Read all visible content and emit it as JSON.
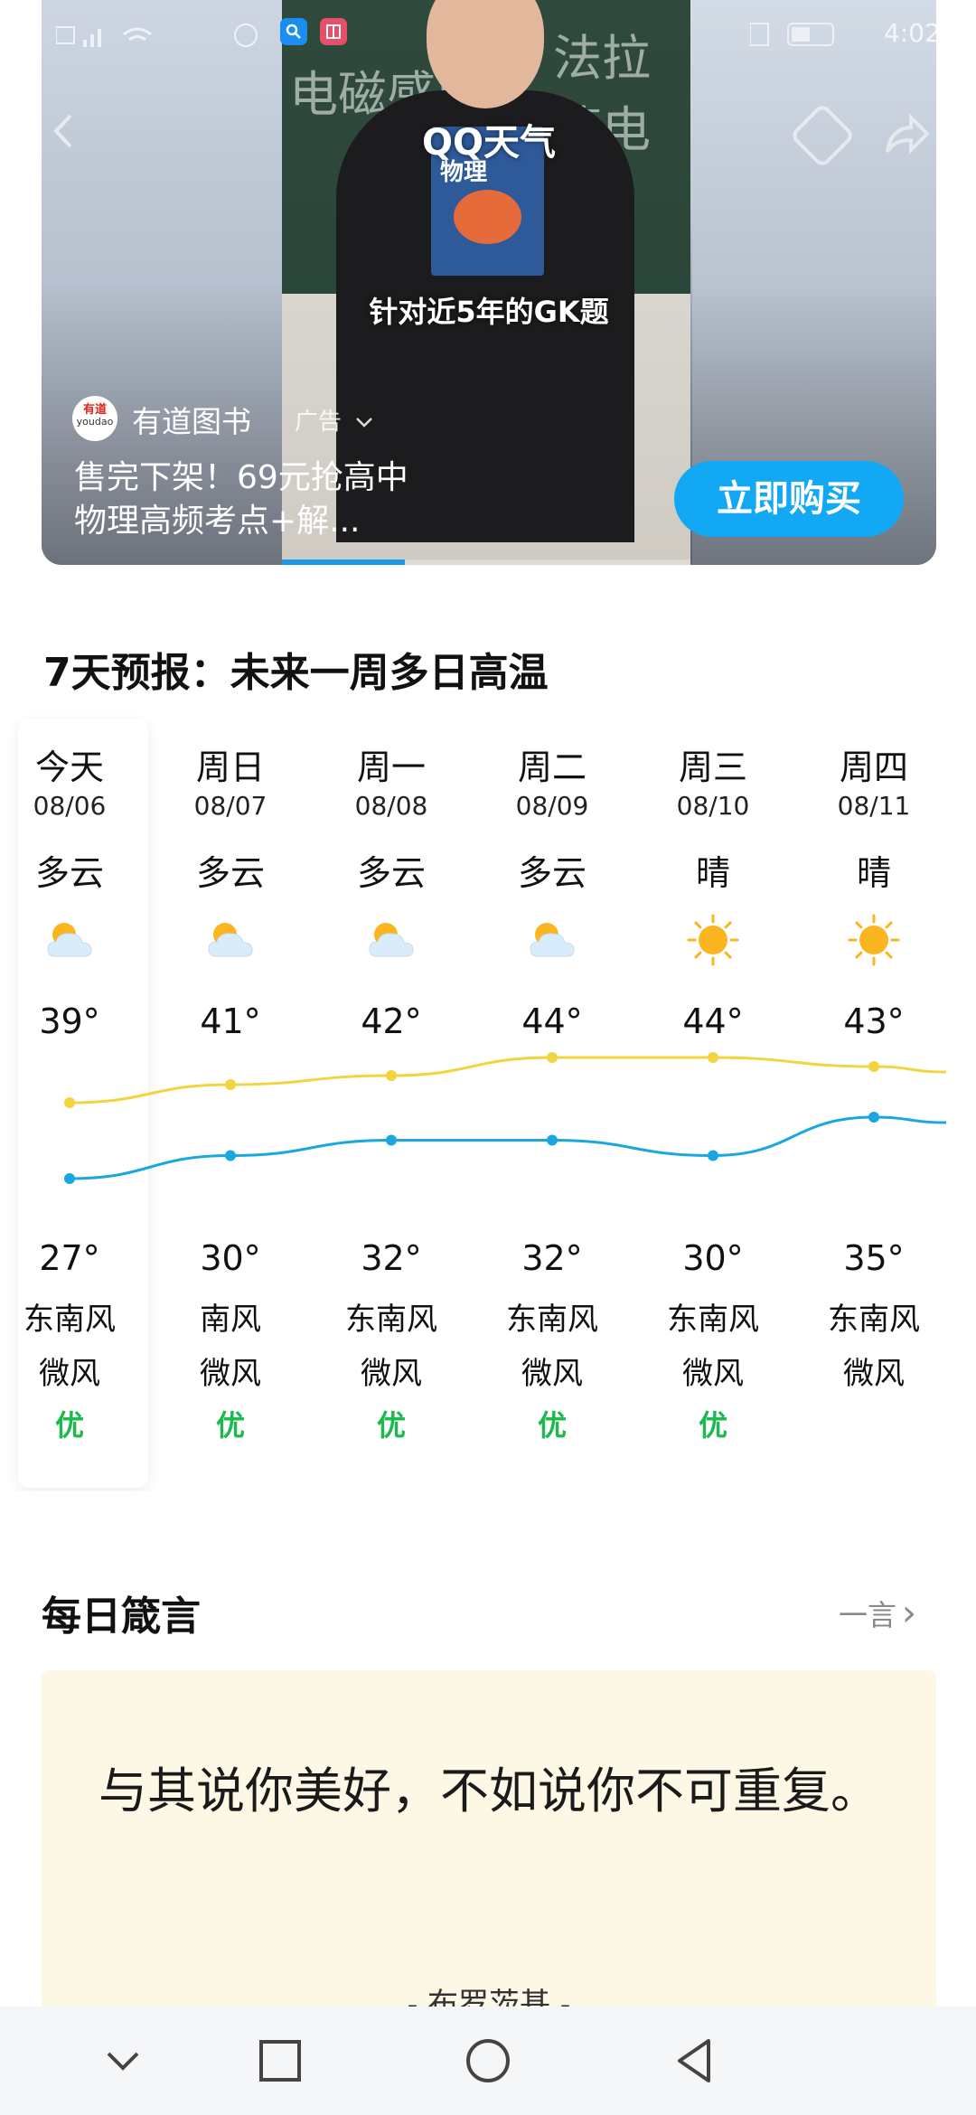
{
  "ad": {
    "overlay_title": "QQ天气",
    "book_title": "物理",
    "caption": "针对近5年的GK题",
    "brand": "有道图书",
    "logo_text_cn": "有道",
    "logo_text_en": "youdao",
    "tag": "广告",
    "description": "售完下架！69元抢高中物理高频考点+解...",
    "cta_label": "立即购买",
    "video_progress": 0.3,
    "colors": {
      "cta": "#12a8f3"
    }
  },
  "status_bar": {
    "time": "4:02"
  },
  "forecast": {
    "title": "7天预报：未来一周多日高温",
    "days": [
      {
        "name": "今天",
        "date": "08/06",
        "condition": "多云",
        "icon": "partly-cloudy-icon",
        "high": "39°",
        "low": "27°",
        "wind": "东南风",
        "wind_level": "微风",
        "aqi": "优"
      },
      {
        "name": "周日",
        "date": "08/07",
        "condition": "多云",
        "icon": "partly-cloudy-icon",
        "high": "41°",
        "low": "30°",
        "wind": "南风",
        "wind_level": "微风",
        "aqi": "优"
      },
      {
        "name": "周一",
        "date": "08/08",
        "condition": "多云",
        "icon": "partly-cloudy-icon",
        "high": "42°",
        "low": "32°",
        "wind": "东南风",
        "wind_level": "微风",
        "aqi": "优"
      },
      {
        "name": "周二",
        "date": "08/09",
        "condition": "多云",
        "icon": "partly-cloudy-icon",
        "high": "44°",
        "low": "32°",
        "wind": "东南风",
        "wind_level": "微风",
        "aqi": "优"
      },
      {
        "name": "周三",
        "date": "08/10",
        "condition": "晴",
        "icon": "sunny-icon",
        "high": "44°",
        "low": "30°",
        "wind": "东南风",
        "wind_level": "微风",
        "aqi": "优"
      },
      {
        "name": "周四",
        "date": "08/11",
        "condition": "晴",
        "icon": "sunny-icon",
        "high": "43°",
        "low": "35°",
        "wind": "东南风",
        "wind_level": "微风",
        "aqi": ""
      }
    ],
    "chart_data": {
      "type": "line",
      "categories": [
        "08/06",
        "08/07",
        "08/08",
        "08/09",
        "08/10",
        "08/11"
      ],
      "series": [
        {
          "values": [
            39,
            41,
            42,
            44,
            44,
            43
          ],
          "color": "#f2d43e"
        },
        {
          "values": [
            27,
            30,
            32,
            32,
            30,
            35
          ],
          "color": "#1aa7e0"
        }
      ]
    }
  },
  "quote": {
    "title": "每日箴言",
    "more_label": "一言",
    "text": "与其说你美好，不如说你不可重复。",
    "author": "- 布罗茨基 -"
  },
  "nav": {
    "icons": [
      "chevron-down-icon",
      "recent-apps-icon",
      "home-icon",
      "back-icon"
    ]
  }
}
